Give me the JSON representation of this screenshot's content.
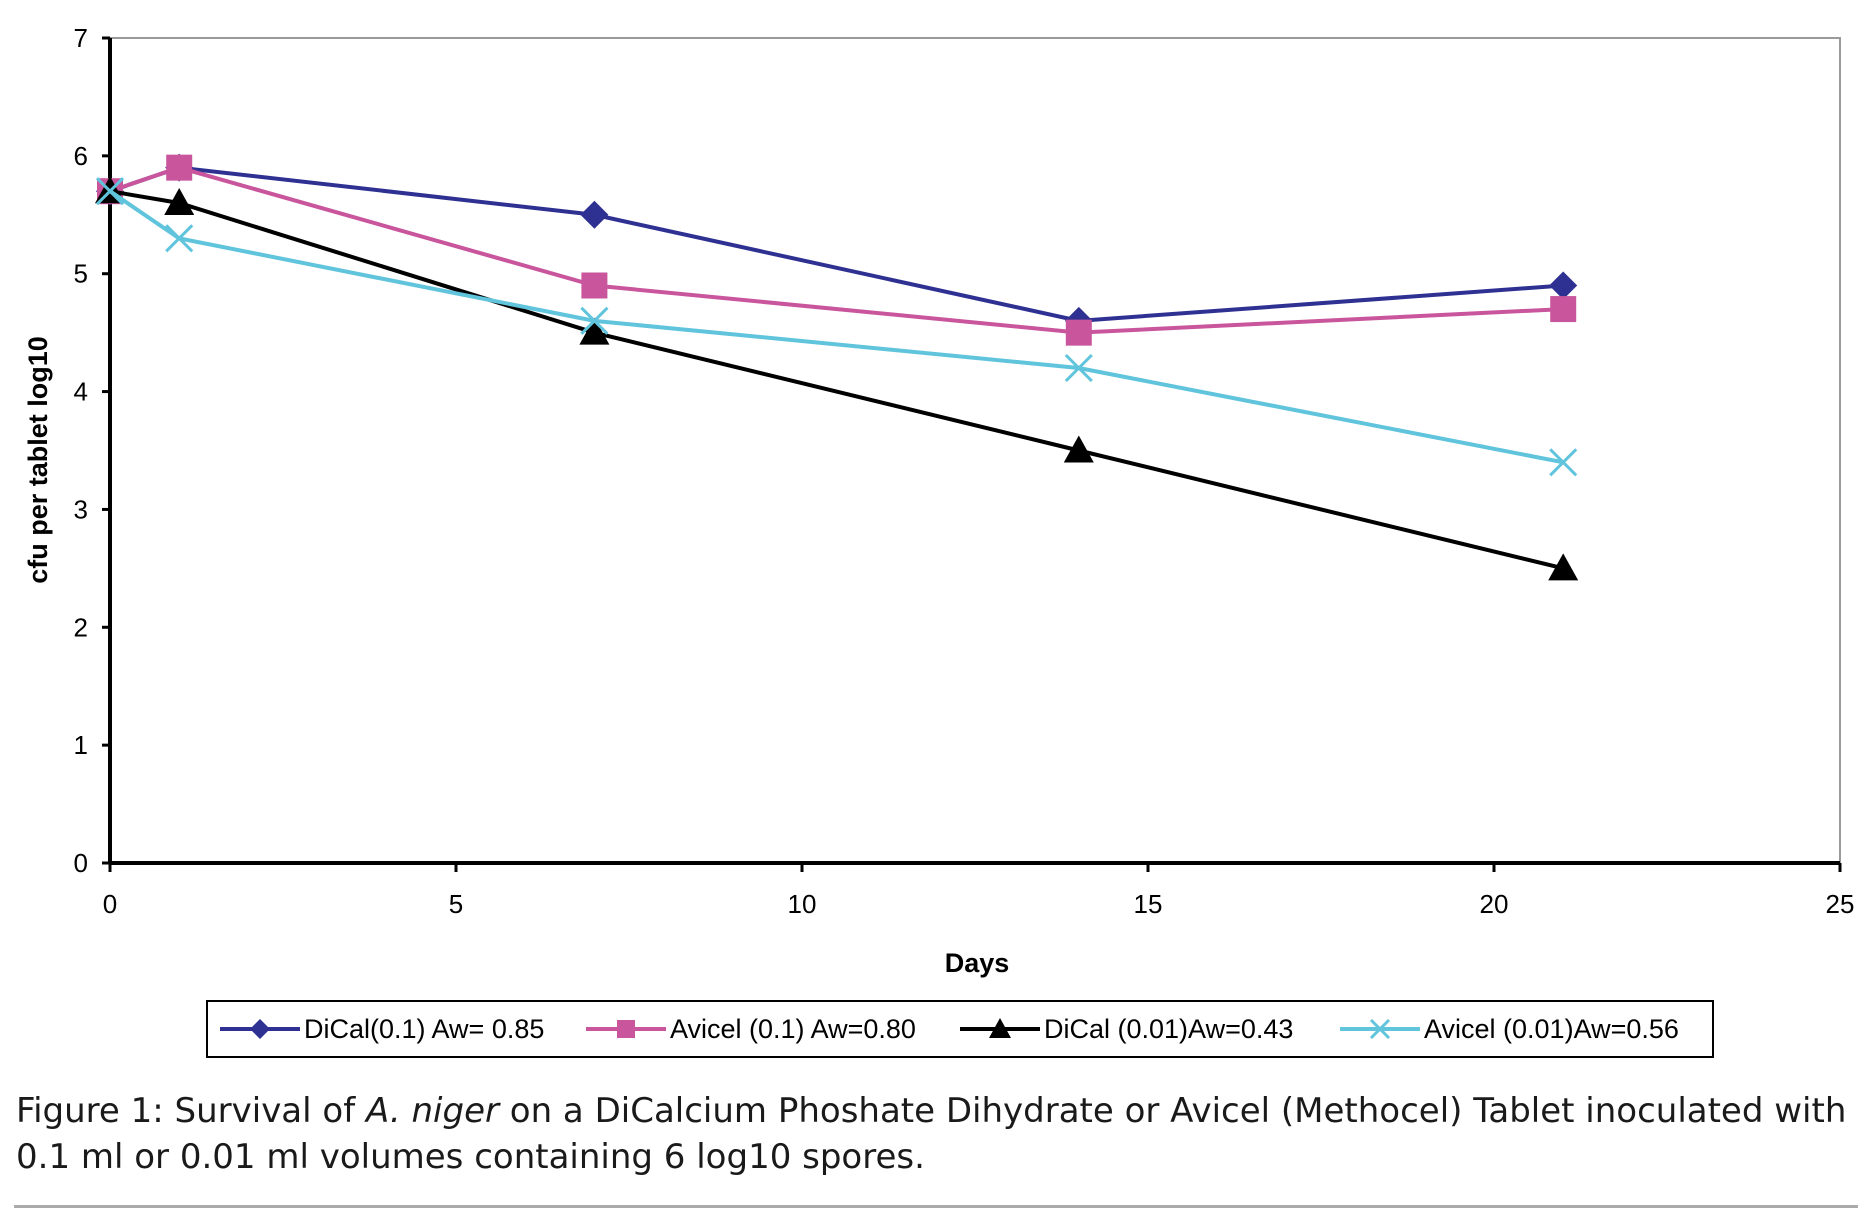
{
  "chart_data": {
    "type": "line",
    "title": "",
    "xlabel": "Days",
    "ylabel": "cfu per tablet log10",
    "xlim": [
      0,
      25
    ],
    "ylim": [
      0,
      7
    ],
    "xticks": [
      0,
      5,
      10,
      15,
      20,
      25
    ],
    "yticks": [
      0,
      1,
      2,
      3,
      4,
      5,
      6,
      7
    ],
    "grid": false,
    "legend_position": "bottom",
    "series": [
      {
        "name": "DiCal(0.1) Aw= 0.85",
        "color": "#2e3192",
        "marker": "diamond",
        "x": [
          0,
          1,
          7,
          14,
          21
        ],
        "y": [
          5.7,
          5.9,
          5.5,
          4.6,
          4.9
        ]
      },
      {
        "name": "Avicel (0.1) Aw=0.80",
        "color": "#c9569c",
        "marker": "square",
        "x": [
          0,
          1,
          7,
          14,
          21
        ],
        "y": [
          5.7,
          5.9,
          4.9,
          4.5,
          4.7
        ]
      },
      {
        "name": "DiCal (0.01)Aw=0.43",
        "color": "#000000",
        "marker": "triangle",
        "x": [
          0,
          1,
          7,
          14,
          21
        ],
        "y": [
          5.7,
          5.6,
          4.5,
          3.5,
          2.5
        ]
      },
      {
        "name": "Avicel (0.01)Aw=0.56",
        "color": "#5fc4dc",
        "marker": "x",
        "x": [
          0,
          1,
          7,
          14,
          21
        ],
        "y": [
          5.7,
          5.3,
          4.6,
          4.2,
          3.4
        ]
      }
    ]
  },
  "caption": {
    "prefix": "Figure 1: Survival of ",
    "italic": "A. niger",
    "suffix": " on a DiCalcium Phoshate Dihydrate or Avicel (Methocel) Tablet inoculated with 0.1 ml or 0.01 ml volumes containing 6 log10 spores."
  }
}
